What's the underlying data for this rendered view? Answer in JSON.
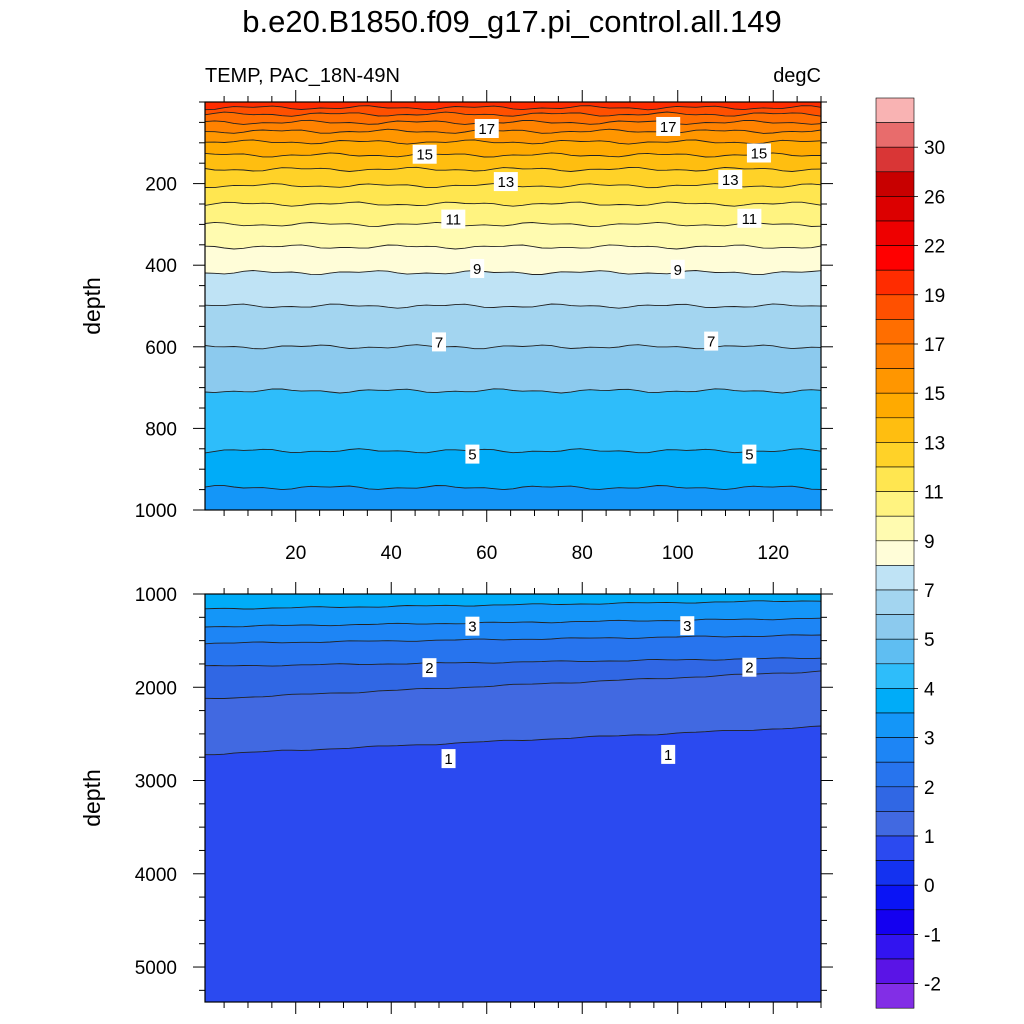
{
  "figure": {
    "title": "b.e20.B1850.f09_g17.pi_control.all.149",
    "left_subtitle": "TEMP, PAC_18N-49N",
    "right_subtitle": "degC"
  },
  "chart_data": [
    {
      "type": "heatmap",
      "panel": "upper",
      "ylabel": "depth",
      "xlabel": "",
      "xlim": [
        1,
        130
      ],
      "ylim": [
        1000,
        0
      ],
      "x_ticks": [
        20,
        40,
        60,
        80,
        100,
        120
      ],
      "x_tick_labels": [
        "20",
        "40",
        "60",
        "80",
        "100",
        "120"
      ],
      "y_ticks": [
        200,
        400,
        600,
        800,
        1000
      ],
      "y_tick_labels": [
        "200",
        "400",
        "600",
        "800",
        "1000"
      ],
      "contour_levels": [
        {
          "value": 20,
          "depth": 0
        },
        {
          "value": 19,
          "depth": 14
        },
        {
          "value": 18,
          "depth": 30
        },
        {
          "value": 17,
          "depth": 50
        },
        {
          "value": 16,
          "depth": 72
        },
        {
          "value": 15,
          "depth": 98
        },
        {
          "value": 14,
          "depth": 130
        },
        {
          "value": 13,
          "depth": 165
        },
        {
          "value": 12,
          "depth": 205
        },
        {
          "value": 11,
          "depth": 250
        },
        {
          "value": 10,
          "depth": 300
        },
        {
          "value": 9,
          "depth": 355
        },
        {
          "value": 8,
          "depth": 418
        },
        {
          "value": 7,
          "depth": 500
        },
        {
          "value": 6,
          "depth": 600
        },
        {
          "value": 5,
          "depth": 708
        },
        {
          "value": 4,
          "depth": 855
        },
        {
          "value": 3.5,
          "depth": 945
        }
      ],
      "contour_labels": [
        {
          "text": "17",
          "x": 60,
          "depth": 65
        },
        {
          "text": "17",
          "x": 98,
          "depth": 60
        },
        {
          "text": "15",
          "x": 47,
          "depth": 128
        },
        {
          "text": "15",
          "x": 117,
          "depth": 125
        },
        {
          "text": "13",
          "x": 64,
          "depth": 195
        },
        {
          "text": "13",
          "x": 111,
          "depth": 190
        },
        {
          "text": "11",
          "x": 53,
          "depth": 287
        },
        {
          "text": "11",
          "x": 115,
          "depth": 285
        },
        {
          "text": "9",
          "x": 58,
          "depth": 408
        },
        {
          "text": "9",
          "x": 100,
          "depth": 410
        },
        {
          "text": "7",
          "x": 50,
          "depth": 588
        },
        {
          "text": "7",
          "x": 107,
          "depth": 586
        },
        {
          "text": "5",
          "x": 57,
          "depth": 863
        },
        {
          "text": "5",
          "x": 115,
          "depth": 863
        }
      ]
    },
    {
      "type": "heatmap",
      "panel": "lower",
      "ylabel": "depth",
      "xlabel": "",
      "xlim": [
        1,
        130
      ],
      "ylim": [
        5375,
        1000
      ],
      "y_ticks": [
        1000,
        2000,
        3000,
        4000,
        5000
      ],
      "y_tick_labels": [
        "1000",
        "2000",
        "3000",
        "4000",
        "5000"
      ],
      "contour_levels": [
        {
          "value": 4,
          "depth": 1000
        },
        {
          "value": 3.5,
          "depth": 1160
        },
        {
          "value": 3,
          "depth": 1350
        },
        {
          "value": 2.5,
          "depth": 1530
        },
        {
          "value": 2,
          "depth": 1775
        },
        {
          "value": 1.5,
          "depth": 2125
        },
        {
          "value": 1,
          "depth": 2720
        }
      ],
      "contour_labels": [
        {
          "text": "3",
          "x": 57,
          "depth": 1345
        },
        {
          "text": "3",
          "x": 102,
          "depth": 1340
        },
        {
          "text": "2",
          "x": 48,
          "depth": 1790
        },
        {
          "text": "2",
          "x": 115,
          "depth": 1785
        },
        {
          "text": "1",
          "x": 52,
          "depth": 2765
        },
        {
          "text": "1",
          "x": 98,
          "depth": 2720
        }
      ]
    }
  ],
  "colorbar": {
    "colors": [
      "#f9b3b3",
      "#e86c6c",
      "#d93636",
      "#c80000",
      "#dc0000",
      "#ee0000",
      "#ff0000",
      "#ff2c00",
      "#ff5000",
      "#ff6e00",
      "#ff8200",
      "#ff9600",
      "#ffaa00",
      "#ffbe10",
      "#ffd228",
      "#ffe650",
      "#fff380",
      "#fffbb0",
      "#fffdd8",
      "#bfe3f5",
      "#a3d5f0",
      "#8ccaee",
      "#5fbef2",
      "#2ebdfa",
      "#00acf8",
      "#1496f8",
      "#1d85f5",
      "#2774ee",
      "#3067e4",
      "#4169e1",
      "#2b4af0",
      "#1432f0",
      "#0a14f5",
      "#1400f0",
      "#3214f0",
      "#5a14e6",
      "#822ee6"
    ],
    "label_boxes": [
      2,
      4,
      6,
      8,
      10,
      12,
      14,
      16,
      18,
      20,
      22,
      24,
      26,
      28,
      30,
      32,
      34,
      36
    ],
    "labels": [
      "30",
      "26",
      "22",
      "19",
      "17",
      "15",
      "13",
      "11",
      "9",
      "7",
      "5",
      "4",
      "3",
      "2",
      "1",
      "0",
      "-1",
      "-2"
    ]
  }
}
